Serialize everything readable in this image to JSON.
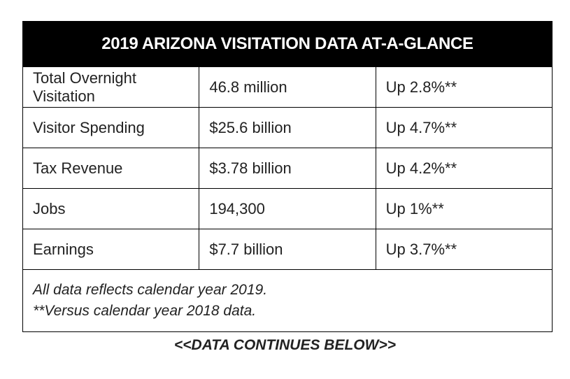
{
  "table": {
    "title": "2019 ARIZONA VISITATION DATA AT-A-GLANCE",
    "rows": [
      {
        "label": "Total Overnight Visitation",
        "value": "46.8 million",
        "change": "Up 2.8%**"
      },
      {
        "label": "Visitor Spending",
        "value": "$25.6 billion",
        "change": "Up 4.7%**"
      },
      {
        "label": "Tax Revenue",
        "value": "$3.78 billion",
        "change": "Up 4.2%**"
      },
      {
        "label": "Jobs",
        "value": "194,300",
        "change": "Up 1%**"
      },
      {
        "label": "Earnings",
        "value": "$7.7 billion",
        "change": "Up 3.7%**"
      }
    ],
    "notes": [
      "All data reflects calendar year 2019.",
      "**Versus calendar year 2018 data."
    ]
  },
  "footer": {
    "continues_text": "<<DATA CONTINUES BELOW>>"
  },
  "colors": {
    "header_background": "#000000",
    "header_text": "#ffffff",
    "body_text": "#222222",
    "border": "#000000"
  }
}
